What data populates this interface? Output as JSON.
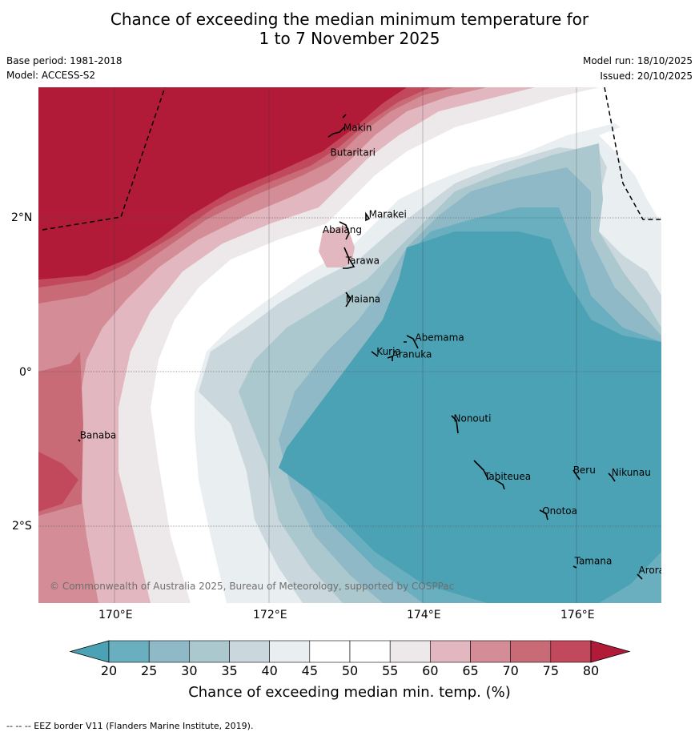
{
  "title": {
    "line1": "Chance of exceeding the median minimum temperature for",
    "line2": "1 to 7 November 2025"
  },
  "meta": {
    "base_period": "Base period: 1981-2018",
    "model": "Model: ACCESS-S2",
    "model_run": "Model run: 18/10/2025",
    "issued": "Issued: 20/10/2025"
  },
  "map": {
    "lat_labels": [
      "2°N",
      "0°",
      "2°S"
    ],
    "lon_labels": [
      "170°E",
      "172°E",
      "174°E",
      "176°E"
    ],
    "copyright": "© Commonwealth of Australia 2025, Bureau of Meteorology, supported by COSPPac",
    "islands": [
      {
        "name": "Makin",
        "lon": 172.97,
        "lat": 3.12
      },
      {
        "name": "Butaritari",
        "lon": 172.8,
        "lat": 2.8
      },
      {
        "name": "Marakei",
        "lon": 173.3,
        "lat": 2.0
      },
      {
        "name": "Abaiang",
        "lon": 172.7,
        "lat": 1.8
      },
      {
        "name": "Tarawa",
        "lon": 173.0,
        "lat": 1.4
      },
      {
        "name": "Maiana",
        "lon": 173.0,
        "lat": 0.9
      },
      {
        "name": "Abemama",
        "lon": 173.9,
        "lat": 0.4
      },
      {
        "name": "Kuria",
        "lon": 173.4,
        "lat": 0.22
      },
      {
        "name": "Aranuka",
        "lon": 173.6,
        "lat": 0.18
      },
      {
        "name": "Nonouti",
        "lon": 174.4,
        "lat": -0.65
      },
      {
        "name": "Beru",
        "lon": 175.95,
        "lat": -1.32
      },
      {
        "name": "Nikunau",
        "lon": 176.45,
        "lat": -1.35
      },
      {
        "name": "Tabiteuea",
        "lon": 174.8,
        "lat": -1.4
      },
      {
        "name": "Onotoa",
        "lon": 175.55,
        "lat": -1.85
      },
      {
        "name": "Banaba",
        "lon": 169.55,
        "lat": -0.87
      },
      {
        "name": "Tamana",
        "lon": 175.97,
        "lat": -2.5
      },
      {
        "name": "Arorae",
        "lon": 176.8,
        "lat": -2.62
      }
    ]
  },
  "colorbar": {
    "ticks": [
      "20",
      "25",
      "30",
      "35",
      "40",
      "45",
      "50",
      "55",
      "60",
      "65",
      "70",
      "75",
      "80"
    ],
    "colors": [
      "#4aa2b4",
      "#6aafbf",
      "#8fb9c6",
      "#aac8cd",
      "#cad8de",
      "#e9eef1",
      "#ffffff",
      "#ffffff",
      "#ede8e9",
      "#e2b7bf",
      "#d48c97",
      "#c96b77",
      "#c2485b",
      "#b21b38"
    ],
    "title": "Chance of exceeding median min. temp. (%)"
  },
  "footer": {
    "eez_note": "--  --  -- EEZ border V11 (Flanders Marine Institute, 2019)."
  }
}
